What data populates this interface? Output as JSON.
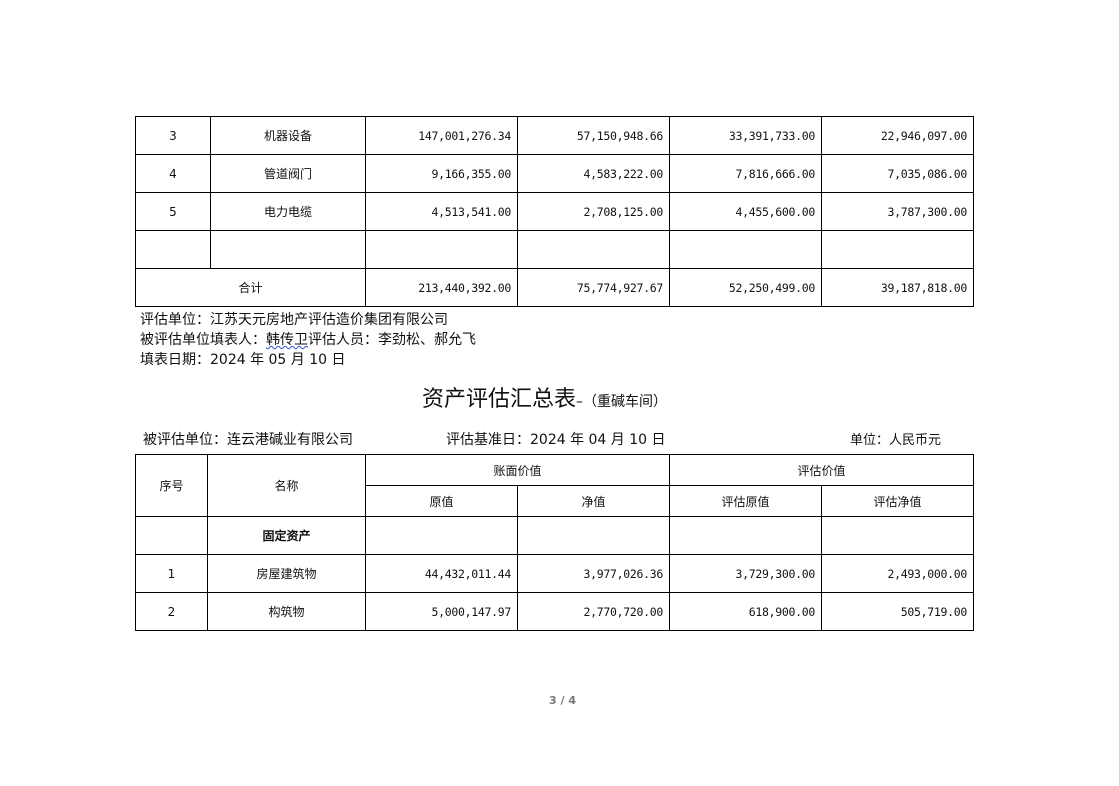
{
  "table1": {
    "rows": [
      {
        "no": "3",
        "name": "机器设备",
        "book_orig": "147,001,276.34",
        "book_net": "57,150,948.66",
        "eval_orig": "33,391,733.00",
        "eval_net": "22,946,097.00"
      },
      {
        "no": "4",
        "name": "管道阀门",
        "book_orig": "9,166,355.00",
        "book_net": "4,583,222.00",
        "eval_orig": "7,816,666.00",
        "eval_net": "7,035,086.00"
      },
      {
        "no": "5",
        "name": "电力电缆",
        "book_orig": "4,513,541.00",
        "book_net": "2,708,125.00",
        "eval_orig": "4,455,600.00",
        "eval_net": "3,787,300.00"
      },
      {
        "no": "",
        "name": "",
        "book_orig": "",
        "book_net": "",
        "eval_orig": "",
        "eval_net": ""
      }
    ],
    "total": {
      "label": "合计",
      "book_orig": "213,440,392.00",
      "book_net": "75,774,927.67",
      "eval_orig": "52,250,499.00",
      "eval_net": "39,187,818.00"
    }
  },
  "footer": {
    "eval_unit": "评估单位：江苏天元房地产评估造价集团有限公司",
    "filler_prefix": "被评估单位填表人：",
    "filler_name": "韩传卫",
    "evaluators": "评估人员：李劲松、郝允飞",
    "fill_date": "填表日期：2024 年 05 月 10 日"
  },
  "title": {
    "main": "资产评估汇总表",
    "sub": "–（重碱车间）"
  },
  "info": {
    "evaluated_unit": "被评估单位：连云港碱业有限公司",
    "base_date": "评估基准日：2024 年 04 月 10 日",
    "currency": "单位：人民币元"
  },
  "table2": {
    "headers": {
      "no": "序号",
      "name": "名称",
      "book": "账面价值",
      "eval": "评估价值",
      "book_orig": "原值",
      "book_net": "净值",
      "eval_orig": "评估原值",
      "eval_net": "评估净值"
    },
    "rows": [
      {
        "no": "",
        "name": "固定资产",
        "book_orig": "",
        "book_net": "",
        "eval_orig": "",
        "eval_net": "",
        "bold": true
      },
      {
        "no": "1",
        "name": "房屋建筑物",
        "book_orig": "44,432,011.44",
        "book_net": "3,977,026.36",
        "eval_orig": "3,729,300.00",
        "eval_net": "2,493,000.00"
      },
      {
        "no": "2",
        "name": "构筑物",
        "book_orig": "5,000,147.97",
        "book_net": "2,770,720.00",
        "eval_orig": "618,900.00",
        "eval_net": "505,719.00"
      }
    ]
  },
  "page": {
    "number": "3 / 4"
  }
}
